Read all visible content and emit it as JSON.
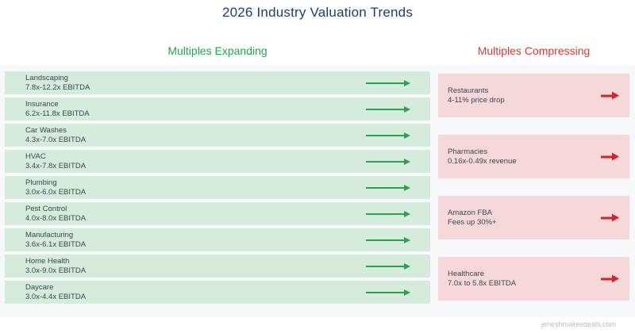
{
  "title": "2026 Industry Valuation Trends",
  "watermark": "jeneshmakesdeals.com",
  "colors": {
    "title_navy": "#1d3e6e",
    "expanding_green": "#27a34c",
    "compressing_red": "#dc3932",
    "arrow_red": "#d7222b",
    "row_green_bg": "#d5ebdc",
    "row_red_bg": "#f6d7da",
    "plot_bg": "#f7f8fa",
    "row_text": "#3c464e"
  },
  "chart_data": {
    "type": "table",
    "title": "2026 Industry Valuation Trends",
    "legend_position": "top",
    "grid": false,
    "groups": [
      {
        "label": "Multiples Expanding",
        "direction": "expanding",
        "arrow": "right-green",
        "items": [
          {
            "industry": "Landscaping",
            "value": "7.8x-12.2x EBITDA"
          },
          {
            "industry": "Insurance",
            "value": "6.2x-11.8x EBITDA"
          },
          {
            "industry": "Car Washes",
            "value": "4.3x-7.0x EBITDA"
          },
          {
            "industry": "HVAC",
            "value": "3.4x-7.8x EBITDA"
          },
          {
            "industry": "Plumbing",
            "value": "3.0x-6.0x EBITDA"
          },
          {
            "industry": "Pest Control",
            "value": "4.0x-8.0x EBITDA"
          },
          {
            "industry": "Manufacturing",
            "value": "3.6x-6.1x EBITDA"
          },
          {
            "industry": "Home Health",
            "value": "3.0x-9.0x EBITDA"
          },
          {
            "industry": "Daycare",
            "value": "3.0x-4.4x EBITDA"
          }
        ]
      },
      {
        "label": "Multiples Compressing",
        "direction": "compressing",
        "arrow": "right-red",
        "items": [
          {
            "industry": "Restaurants",
            "value": "4-11% price drop"
          },
          {
            "industry": "Pharmacies",
            "value": "0.16x-0.49x revenue"
          },
          {
            "industry": "Amazon FBA",
            "value": "Fees up 30%+"
          },
          {
            "industry": "Healthcare",
            "value": "7.0x to 5.8x EBITDA"
          }
        ]
      }
    ]
  }
}
